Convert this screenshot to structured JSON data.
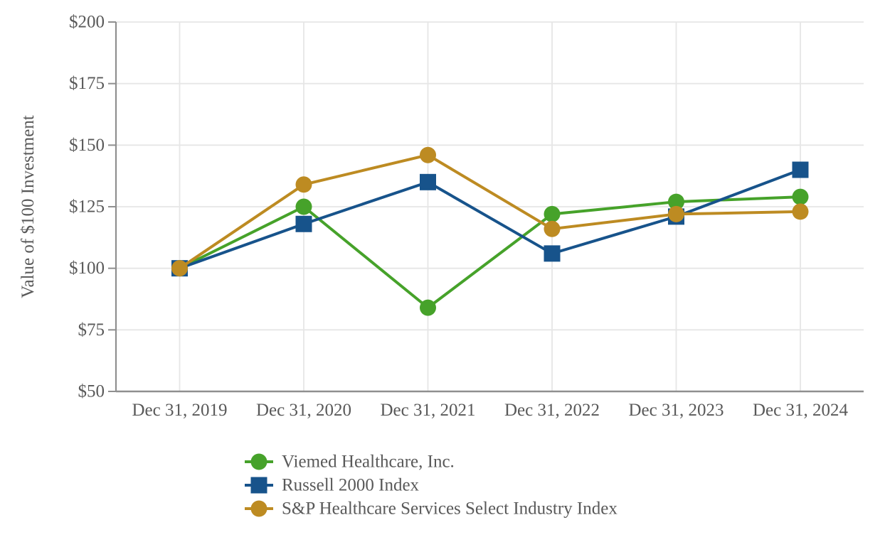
{
  "chart_data": {
    "type": "line",
    "title": "",
    "ylabel": "Value of $100 Investment",
    "xlabel": "",
    "x_axis_type": "category",
    "categories": [
      "Dec 31, 2019",
      "Dec 31, 2020",
      "Dec 31, 2021",
      "Dec 31, 2022",
      "Dec 31, 2023",
      "Dec 31, 2024"
    ],
    "series": [
      {
        "id": "viemed",
        "name": "Viemed Healthcare, Inc.",
        "color": "#46A22A",
        "marker": "circle",
        "values": [
          100,
          125,
          84,
          122,
          127,
          129
        ]
      },
      {
        "id": "russell-2000",
        "name": "Russell 2000 Index",
        "color": "#17538B",
        "marker": "square",
        "values": [
          100,
          118,
          135,
          106,
          121,
          140
        ]
      },
      {
        "id": "sp-healthcare",
        "name": "S&P Healthcare Services Select Industry Index",
        "color": "#BD8B22",
        "marker": "circle",
        "values": [
          100,
          134,
          146,
          116,
          122,
          123
        ]
      }
    ],
    "ylim": [
      50,
      200
    ],
    "y_ticks": [
      50,
      75,
      100,
      125,
      150,
      175,
      200
    ],
    "y_tick_prefix": "$",
    "grid": true,
    "legend_position": "bottom-left",
    "colors": {
      "grid_line": "#E6E6E6",
      "axis_line": "#8F8F8F",
      "text": "#595959",
      "background": "#FFFFFF"
    }
  }
}
